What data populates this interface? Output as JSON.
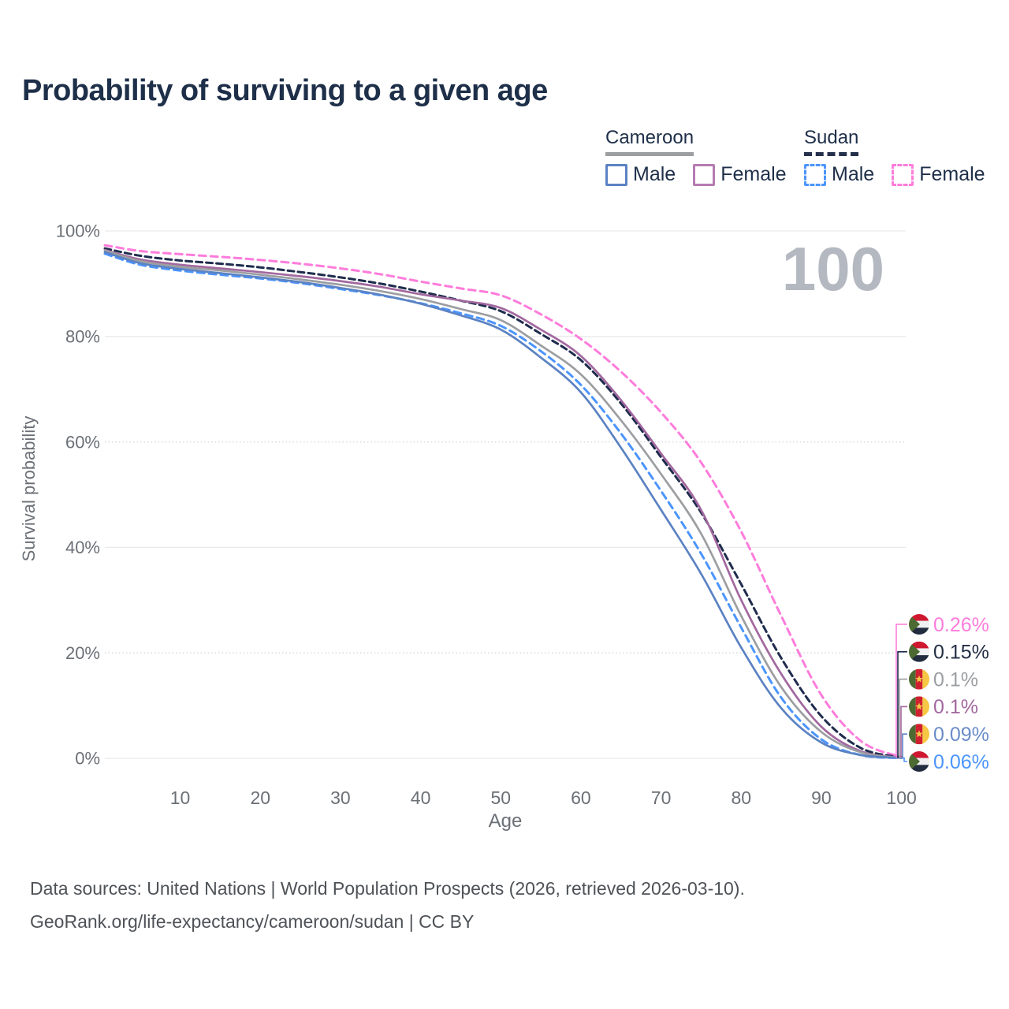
{
  "title": "Probability of surviving to a given age",
  "watermark_label": "100",
  "legend": {
    "groups": [
      {
        "name": "Cameroon",
        "line_style": "solid",
        "line_color": "#9c9ea1",
        "items": [
          {
            "label": "Male",
            "color": "#5b82c3",
            "dashed": false
          },
          {
            "label": "Female",
            "color": "#b77bb2",
            "dashed": false
          }
        ]
      },
      {
        "name": "Sudan",
        "line_style": "dashed",
        "line_color": "#25304b",
        "items": [
          {
            "label": "Male",
            "color": "#4c95fd",
            "dashed": true
          },
          {
            "label": "Female",
            "color": "#fe7cdb",
            "dashed": true
          }
        ]
      }
    ]
  },
  "chart_data": {
    "type": "line",
    "title": "Probability of surviving to a given age",
    "xlabel": "Age",
    "ylabel": "Survival probability",
    "xlim": [
      0.6,
      100
    ],
    "ylim": [
      0,
      100
    ],
    "x_ticks": [
      10,
      20,
      30,
      40,
      50,
      60,
      70,
      80,
      90,
      100
    ],
    "y_ticks": [
      0,
      20,
      40,
      60,
      80,
      100
    ],
    "y_tick_suffix": "%",
    "grid": true,
    "legend_position": "top-right",
    "hover_age": 100,
    "ages": [
      0.6,
      5,
      10,
      15,
      20,
      25,
      30,
      35,
      40,
      45,
      50,
      55,
      60,
      65,
      70,
      75,
      80,
      85,
      90,
      95,
      100
    ],
    "series": [
      {
        "name": "Sudan Female",
        "country": "Sudan",
        "sex": "Female",
        "color": "#fe7cdb",
        "dashed": true,
        "values": [
          97.3,
          96.2,
          95.6,
          95.1,
          94.5,
          93.8,
          92.9,
          91.8,
          90.4,
          89.1,
          87.8,
          84.2,
          79.5,
          73.3,
          65.6,
          56.1,
          43.0,
          27.0,
          12.0,
          3.2,
          0.26
        ],
        "end_label": {
          "text": "0.26%",
          "color": "#fe7cdb",
          "flag": "sudan",
          "row": 0
        }
      },
      {
        "name": "Sudan Both sexes",
        "country": "Sudan",
        "sex": "Both",
        "color": "#1f2c4d",
        "dashed": true,
        "values": [
          96.7,
          95.3,
          94.4,
          93.8,
          93.1,
          92.2,
          91.2,
          90.0,
          88.5,
          86.8,
          84.8,
          80.5,
          75.5,
          67.3,
          57.1,
          46.6,
          33.0,
          19.0,
          8.0,
          1.9,
          0.15
        ],
        "end_label": {
          "text": "0.15%",
          "color": "#232e44",
          "flag": "sudan",
          "row": 1
        }
      },
      {
        "name": "Cameroon Female",
        "country": "Cameroon",
        "sex": "Female",
        "color": "#a2689f",
        "dashed": false,
        "values": [
          96.4,
          94.6,
          93.6,
          92.9,
          92.2,
          91.4,
          90.5,
          89.4,
          88.0,
          86.8,
          85.4,
          81.3,
          76.3,
          67.9,
          57.8,
          47.1,
          30.0,
          16.0,
          6.0,
          1.3,
          0.1
        ],
        "end_label": {
          "text": "0.1%",
          "color": "#a2689f",
          "flag": "cameroon",
          "row": 3
        }
      },
      {
        "name": "Cameroon Both sexes",
        "country": "Cameroon",
        "sex": "Both",
        "color": "#9c9ea1",
        "dashed": false,
        "values": [
          96.3,
          94.3,
          93.2,
          92.5,
          91.7,
          90.8,
          89.8,
          88.6,
          87.1,
          85.2,
          83.1,
          78.3,
          72.8,
          64.1,
          53.9,
          42.6,
          27.0,
          13.5,
          5.0,
          1.1,
          0.1
        ],
        "end_label": {
          "text": "0.1%",
          "color": "#9c9ea1",
          "flag": "cameroon",
          "row": 2
        }
      },
      {
        "name": "Sudan Male",
        "country": "Sudan",
        "sex": "Male",
        "color": "#4c95fd",
        "dashed": true,
        "values": [
          95.7,
          93.6,
          92.5,
          91.7,
          91.0,
          90.1,
          89.0,
          87.8,
          86.3,
          84.4,
          82.0,
          77.2,
          70.8,
          61.6,
          50.7,
          38.8,
          24.8,
          11.5,
          3.6,
          0.6,
          0.06
        ],
        "end_label": {
          "text": "0.06%",
          "color": "#4c95fd",
          "flag": "sudan",
          "row": 5
        }
      },
      {
        "name": "Cameroon Male",
        "country": "Cameroon",
        "sex": "Male",
        "color": "#5b82c3",
        "dashed": false,
        "values": [
          96.0,
          93.9,
          92.8,
          92.0,
          91.2,
          90.3,
          89.2,
          87.9,
          86.2,
          84.0,
          81.3,
          76.0,
          69.4,
          58.9,
          47.1,
          35.0,
          21.0,
          9.5,
          3.0,
          0.6,
          0.09
        ],
        "end_label": {
          "text": "0.09%",
          "color": "#6a8cc9",
          "flag": "cameroon",
          "row": 4
        }
      }
    ]
  },
  "flags": {
    "sudan": {
      "red": "#cf1830",
      "white": "#eef0f2",
      "black": "#222c3f",
      "green": "#4c6a31"
    },
    "cameroon": {
      "green": "#4c6a31",
      "red": "#cf2030",
      "yellow": "#f6c744"
    }
  },
  "footer": {
    "line1": "Data sources: United Nations | World Population Prospects (2026, retrieved 2026-03-10).",
    "line2": "GeoRank.org/life-expectancy/cameroon/sudan | CC BY"
  }
}
